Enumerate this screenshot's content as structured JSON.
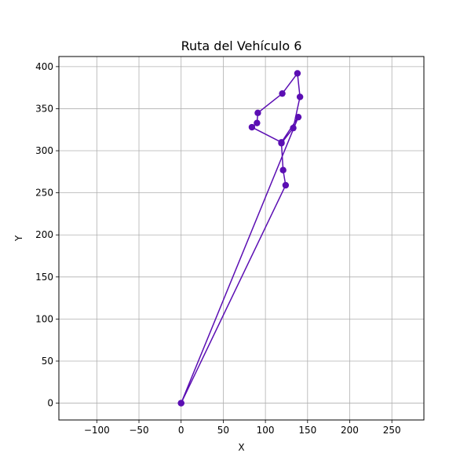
{
  "chart_data": {
    "type": "line",
    "title": "Ruta del Vehículo 6",
    "xlabel": "X",
    "ylabel": "Y",
    "xlim": [
      -145,
      288
    ],
    "ylim": [
      -20,
      412
    ],
    "grid": true,
    "x_ticks": [
      -100,
      -50,
      0,
      50,
      100,
      150,
      200,
      250
    ],
    "x_tick_labels": [
      "−100",
      "−50",
      "0",
      "50",
      "100",
      "150",
      "200",
      "250"
    ],
    "y_ticks": [
      0,
      50,
      100,
      150,
      200,
      250,
      300,
      350,
      400
    ],
    "y_tick_labels": [
      "0",
      "50",
      "100",
      "150",
      "200",
      "250",
      "300",
      "350",
      "400"
    ],
    "color": "#5b0eb3",
    "grid_color": "#b0b0b0",
    "series": [
      {
        "x": [
          0,
          124,
          121,
          119,
          133,
          141,
          138,
          120,
          91,
          90,
          84,
          119,
          139,
          0
        ],
        "y": [
          0,
          259,
          277,
          309,
          327,
          364,
          392,
          368,
          345,
          333,
          328,
          310,
          340,
          0
        ]
      }
    ]
  }
}
